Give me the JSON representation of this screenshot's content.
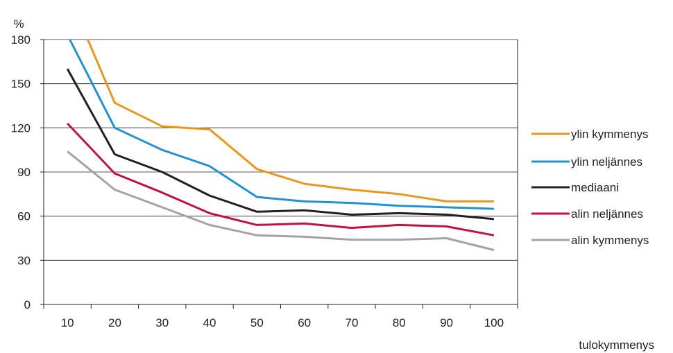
{
  "chart_data": {
    "type": "line",
    "ylabel": "%",
    "xlabel": "tulokymmenys",
    "ylim": [
      0,
      180
    ],
    "yticks": [
      0,
      30,
      60,
      90,
      120,
      150,
      180
    ],
    "xticks": [
      10,
      20,
      30,
      40,
      50,
      60,
      70,
      80,
      90,
      100
    ],
    "x": [
      10,
      20,
      30,
      40,
      50,
      60,
      70,
      80,
      90,
      100
    ],
    "grid": true,
    "legend_position": "right",
    "series": [
      {
        "name": "ylin kymmenys",
        "color": "#e8961e",
        "values": [
          null,
          137,
          121,
          119,
          92,
          82,
          78,
          75,
          70,
          70
        ],
        "top_entry_x": 14.3
      },
      {
        "name": "ylin neljännes",
        "color": "#2291d1",
        "values": [
          null,
          120,
          105,
          94,
          73,
          70,
          69,
          67,
          66,
          65
        ],
        "top_entry_x": 10.5
      },
      {
        "name": "mediaani",
        "color": "#231f20",
        "values": [
          160,
          102,
          90,
          74,
          63,
          64,
          61,
          62,
          61,
          58
        ]
      },
      {
        "name": "alin neljännes",
        "color": "#c2113c",
        "values": [
          123,
          89,
          76,
          62,
          54,
          55,
          52,
          54,
          53,
          47
        ]
      },
      {
        "name": "alin kymmenys",
        "color": "#a3a3a3",
        "values": [
          104,
          78,
          66,
          54,
          47,
          46,
          44,
          44,
          45,
          37
        ]
      }
    ]
  }
}
